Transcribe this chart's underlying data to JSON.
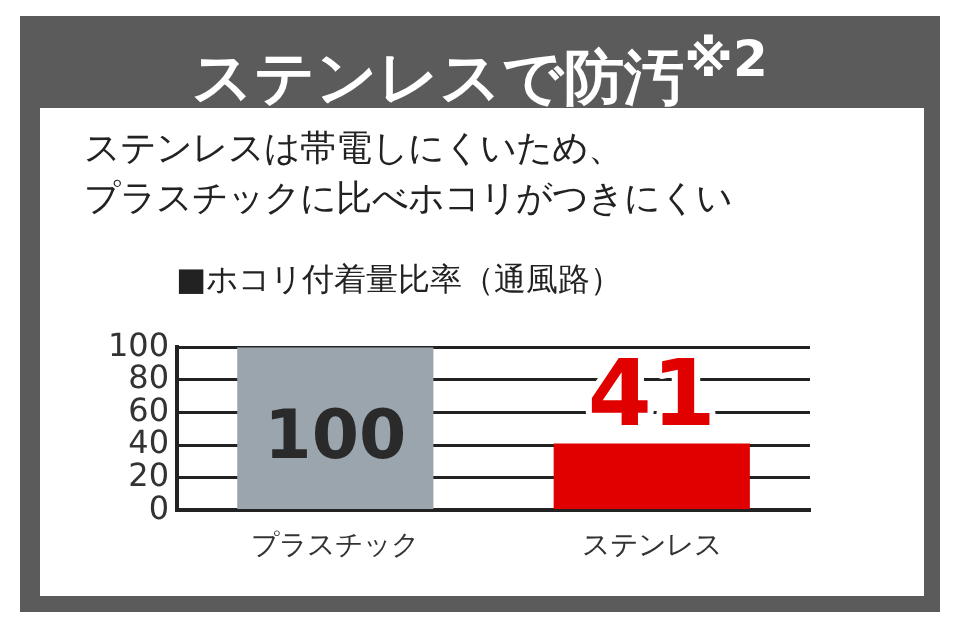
{
  "chart_data": {
    "type": "bar",
    "title": "ステンレスで防汚$^{※2}$",
    "subtitle": "ステンレスは帯電しにくいため、プラスチックに比べホコリがつきにくい",
    "ylabel": "■ホコリ付着量比率（通風路）",
    "categories": [
      "プラスチック",
      "ステンレス"
    ],
    "values": [
      100,
      41
    ],
    "colors": [
      "#9ba5ad",
      "#e00000"
    ],
    "ylim": [
      0,
      100
    ],
    "yticks": [
      0,
      20,
      40,
      60,
      80,
      100
    ],
    "grid": "y",
    "data_labels": true
  }
}
